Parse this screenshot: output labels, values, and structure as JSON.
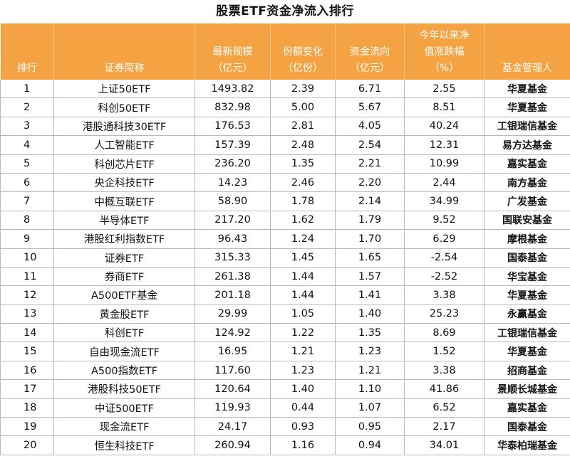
{
  "title": "股票ETF资金净流入排行",
  "chart_data": {
    "type": "table",
    "title": "股票ETF资金净流入排行",
    "columns": [
      [
        "排行"
      ],
      [
        "证券简称"
      ],
      [
        "最新规模",
        "（亿元）"
      ],
      [
        "份额变化",
        "（亿份）"
      ],
      [
        "资金流向",
        "（亿元）"
      ],
      [
        "今年以来净",
        "值涨跌幅",
        "（%）"
      ],
      [
        "基金管理人"
      ]
    ],
    "rows": [
      [
        "1",
        "上证50ETF",
        "1493.82",
        "2.39",
        "6.71",
        "2.55",
        "华夏基金"
      ],
      [
        "2",
        "科创50ETF",
        "832.98",
        "5.00",
        "5.67",
        "8.51",
        "华夏基金"
      ],
      [
        "3",
        "港股通科技30ETF",
        "176.53",
        "2.81",
        "4.05",
        "40.24",
        "工银瑞信基金"
      ],
      [
        "4",
        "人工智能ETF",
        "157.39",
        "2.48",
        "2.54",
        "12.31",
        "易方达基金"
      ],
      [
        "5",
        "科创芯片ETF",
        "236.20",
        "1.35",
        "2.21",
        "10.99",
        "嘉实基金"
      ],
      [
        "6",
        "央企科技ETF",
        "14.23",
        "2.46",
        "2.20",
        "2.44",
        "南方基金"
      ],
      [
        "7",
        "中概互联ETF",
        "58.90",
        "1.78",
        "2.14",
        "34.99",
        "广发基金"
      ],
      [
        "8",
        "半导体ETF",
        "217.20",
        "1.62",
        "1.79",
        "9.52",
        "国联安基金"
      ],
      [
        "9",
        "港股红利指数ETF",
        "96.43",
        "1.24",
        "1.70",
        "6.29",
        "摩根基金"
      ],
      [
        "10",
        "证券ETF",
        "315.33",
        "1.45",
        "1.65",
        "-2.54",
        "国泰基金"
      ],
      [
        "11",
        "券商ETF",
        "261.38",
        "1.44",
        "1.57",
        "-2.52",
        "华宝基金"
      ],
      [
        "12",
        "A500ETF基金",
        "201.18",
        "1.44",
        "1.41",
        "3.38",
        "华夏基金"
      ],
      [
        "13",
        "黄金股ETF",
        "29.99",
        "1.05",
        "1.40",
        "25.23",
        "永赢基金"
      ],
      [
        "14",
        "科创ETF",
        "124.92",
        "1.22",
        "1.35",
        "8.69",
        "工银瑞信基金"
      ],
      [
        "15",
        "自由现金流ETF",
        "16.95",
        "1.21",
        "1.23",
        "1.52",
        "华夏基金"
      ],
      [
        "16",
        "A500指数ETF",
        "117.60",
        "1.23",
        "1.21",
        "3.38",
        "招商基金"
      ],
      [
        "17",
        "港股科技50ETF",
        "120.64",
        "1.40",
        "1.10",
        "41.86",
        "景顺长城基金"
      ],
      [
        "18",
        "中证500ETF",
        "119.93",
        "0.44",
        "1.07",
        "6.52",
        "嘉实基金"
      ],
      [
        "19",
        "现金流ETF",
        "24.17",
        "0.93",
        "0.95",
        "2.17",
        "国泰基金"
      ],
      [
        "20",
        "恒生科技ETF",
        "260.94",
        "1.16",
        "0.94",
        "34.01",
        "华泰柏瑞基金"
      ]
    ]
  },
  "colors": {
    "header_bg": "#f5a243",
    "header_text": "#ffffff",
    "grid": "#b8b8b8"
  }
}
